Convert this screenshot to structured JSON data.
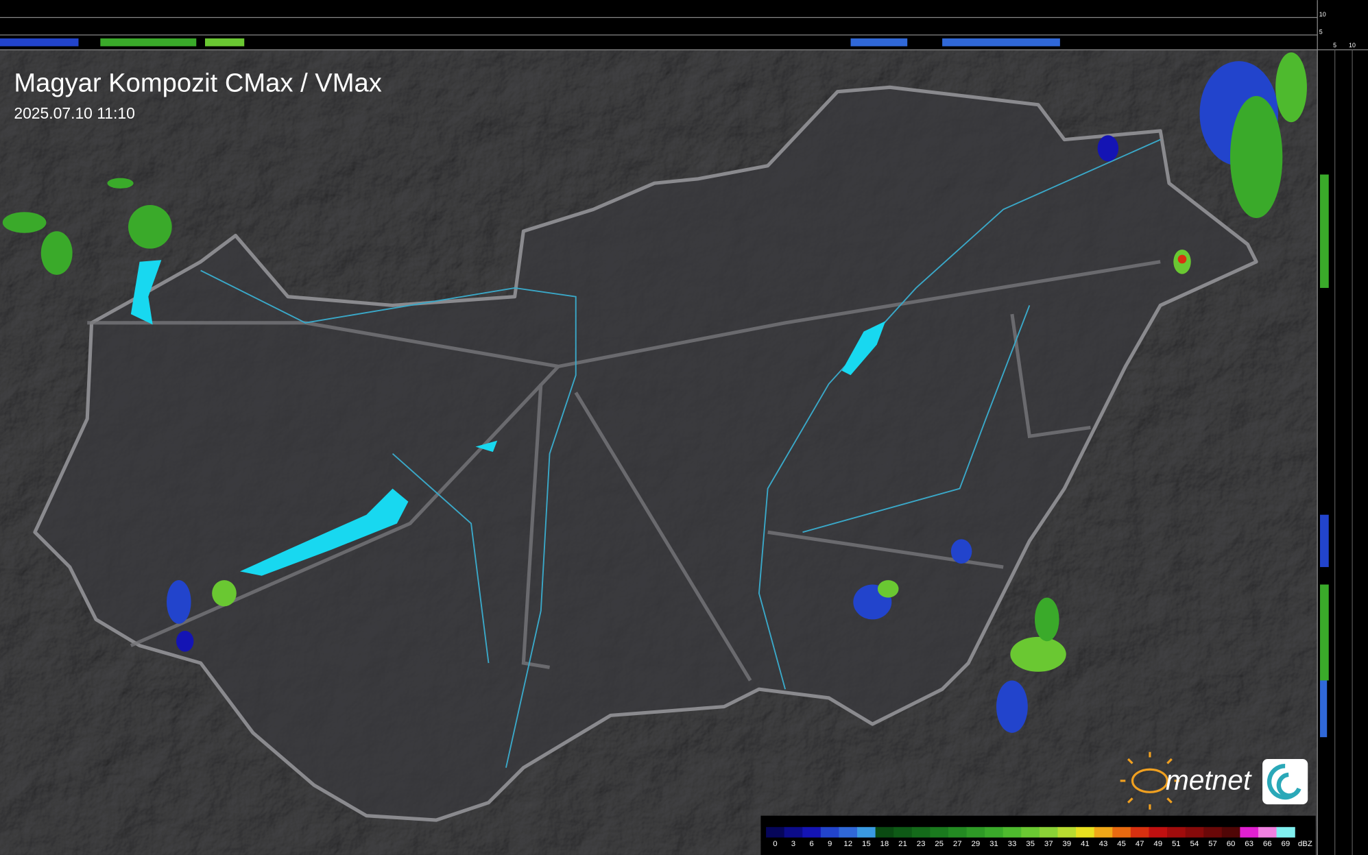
{
  "header": {
    "title": "Magyar Kompozit CMax / VMax",
    "timestamp": "2025.07.10 11:10"
  },
  "profile_ticks": {
    "vertical": [
      "10",
      "5"
    ],
    "horizontal": [
      "5",
      "10"
    ]
  },
  "logo": {
    "text": "metnet"
  },
  "legend": {
    "labels": [
      "0",
      "3",
      "6",
      "9",
      "12",
      "15",
      "18",
      "21",
      "23",
      "25",
      "27",
      "29",
      "31",
      "33",
      "35",
      "37",
      "39",
      "41",
      "43",
      "45",
      "47",
      "49",
      "51",
      "54",
      "57",
      "60",
      "63",
      "66",
      "69"
    ],
    "colors": [
      "#06065a",
      "#0c0c8a",
      "#1414b4",
      "#2244cc",
      "#3068d8",
      "#3a9ae2",
      "#0a4a12",
      "#0e5a16",
      "#146a1a",
      "#1a7a1e",
      "#238a22",
      "#2e9a26",
      "#3aaa2a",
      "#4eba2e",
      "#6ac832",
      "#8ad236",
      "#b8dc30",
      "#e8e020",
      "#f0a818",
      "#e86a10",
      "#d83010",
      "#c01010",
      "#a00c0c",
      "#860a0a",
      "#6a0808",
      "#500606",
      "#e020d0",
      "#f080e0",
      "#80f0f0"
    ],
    "unit": "dBZ"
  }
}
